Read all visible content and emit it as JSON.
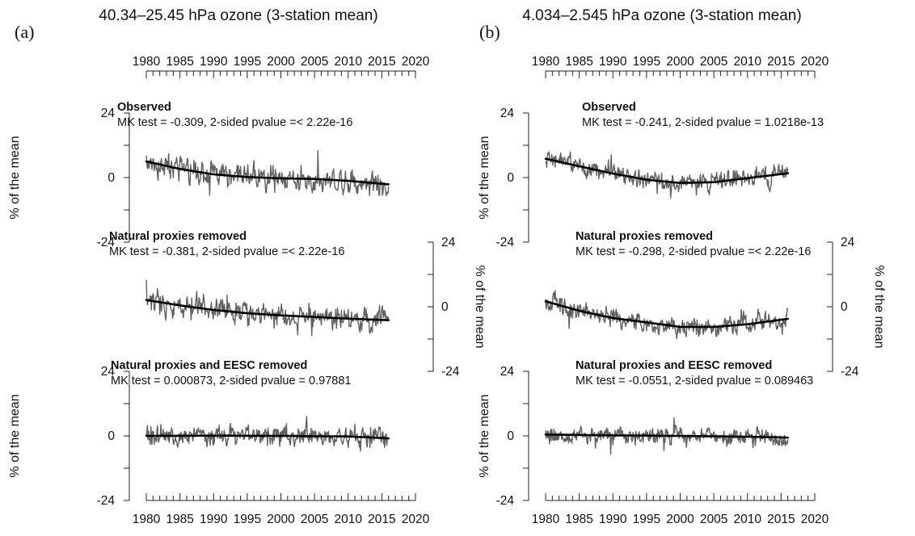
{
  "chart_data": [
    {
      "type": "line",
      "panel_label": "(a)",
      "title": "40.34–25.45 hPa ozone (3-station mean)",
      "x_ticks": [
        1980,
        1985,
        1990,
        1995,
        2000,
        2005,
        2010,
        2015,
        2020
      ],
      "xlim": [
        1980,
        2020
      ],
      "x_data_range": [
        1980,
        2016
      ],
      "subpanels": [
        {
          "name": "observed",
          "label": "Observed",
          "stat": "MK test = -0.309, 2-sided pvalue =< 2.22e-16",
          "ylabel": "% of the mean",
          "axis_side": "left",
          "y_ticks": [
            -24,
            0,
            24
          ],
          "y_tick_labels": [
            "-24",
            "0",
            "24"
          ],
          "ylim": [
            -24,
            24
          ],
          "trend": {
            "x": [
              1980,
              1985,
              1990,
              1995,
              2000,
              2005,
              2010,
              2016
            ],
            "y": [
              6,
              3.2,
              1.2,
              0.2,
              -0.3,
              -0.5,
              -1.2,
              -2.5
            ]
          },
          "series_amplitude": 4.5
        },
        {
          "name": "natural-proxies-removed",
          "label": "Natural proxies removed",
          "stat": "MK test = -0.381, 2-sided pvalue =< 2.22e-16",
          "ylabel": "% of the mean",
          "axis_side": "right",
          "y_ticks": [
            -24,
            0,
            24
          ],
          "y_tick_labels": [
            "-24",
            "0",
            "24"
          ],
          "ylim": [
            -24,
            24
          ],
          "trend": {
            "x": [
              1980,
              1985,
              1990,
              1995,
              2000,
              2005,
              2010,
              2016
            ],
            "y": [
              2.5,
              0.5,
              -1.2,
              -2.4,
              -3.2,
              -3.8,
              -4.4,
              -5
            ]
          },
          "series_amplitude": 4.2
        },
        {
          "name": "natural-proxies-and-eesc-removed",
          "label": "Natural proxies and EESC removed",
          "stat": "MK test = 0.000873, 2-sided pvalue = 0.97881",
          "ylabel": "% of the mean",
          "axis_side": "left",
          "y_ticks": [
            -24,
            0,
            24
          ],
          "y_tick_labels": [
            "-24",
            "0",
            "24"
          ],
          "ylim": [
            -24,
            24
          ],
          "trend": {
            "x": [
              1980,
              1990,
              2000,
              2010,
              2016
            ],
            "y": [
              0,
              0.1,
              0,
              -0.2,
              -0.9
            ]
          },
          "series_amplitude": 3.8
        }
      ]
    },
    {
      "type": "line",
      "panel_label": "(b)",
      "title": "4.034–2.545 hPa ozone (3-station mean)",
      "x_ticks": [
        1980,
        1985,
        1990,
        1995,
        2000,
        2005,
        2010,
        2015,
        2020
      ],
      "xlim": [
        1980,
        2020
      ],
      "x_data_range": [
        1980,
        2016
      ],
      "subpanels": [
        {
          "name": "observed",
          "label": "Observed",
          "stat": "MK test = -0.241, 2-sided pvalue = 1.0218e-13",
          "ylabel": "% of the mean",
          "axis_side": "left",
          "y_ticks": [
            -24,
            0,
            24
          ],
          "y_tick_labels": [
            "-24",
            "0",
            "24"
          ],
          "ylim": [
            -24,
            24
          ],
          "trend": {
            "x": [
              1980,
              1985,
              1990,
              1995,
              2000,
              2005,
              2010,
              2016
            ],
            "y": [
              7,
              4.2,
              1.5,
              -0.8,
              -2,
              -1.7,
              -0.2,
              1.6
            ]
          },
          "series_amplitude": 3.5
        },
        {
          "name": "natural-proxies-removed",
          "label": "Natural proxies removed",
          "stat": "MK test = -0.298, 2-sided pvalue =< 2.22e-16",
          "ylabel": "% of the mean",
          "axis_side": "right",
          "y_ticks": [
            -24,
            0,
            24
          ],
          "y_tick_labels": [
            "-24",
            "0",
            "24"
          ],
          "ylim": [
            -24,
            24
          ],
          "trend": {
            "x": [
              1980,
              1985,
              1990,
              1995,
              2000,
              2005,
              2010,
              2016
            ],
            "y": [
              2,
              -1.5,
              -4.2,
              -5.8,
              -7.5,
              -7.5,
              -6.5,
              -4.5
            ]
          },
          "series_amplitude": 3.5
        },
        {
          "name": "natural-proxies-and-eesc-removed",
          "label": "Natural proxies and EESC removed",
          "stat": "MK test = -0.0551, 2-sided pvalue = 0.089463",
          "ylabel": "% of the mean",
          "axis_side": "left",
          "y_ticks": [
            -24,
            0,
            24
          ],
          "y_tick_labels": [
            "-24",
            "0",
            "24"
          ],
          "ylim": [
            -24,
            24
          ],
          "trend": {
            "x": [
              1980,
              1990,
              2000,
              2010,
              2016
            ],
            "y": [
              0.5,
              0.2,
              0,
              -0.3,
              -0.6
            ]
          },
          "series_amplitude": 3.2
        }
      ]
    }
  ]
}
